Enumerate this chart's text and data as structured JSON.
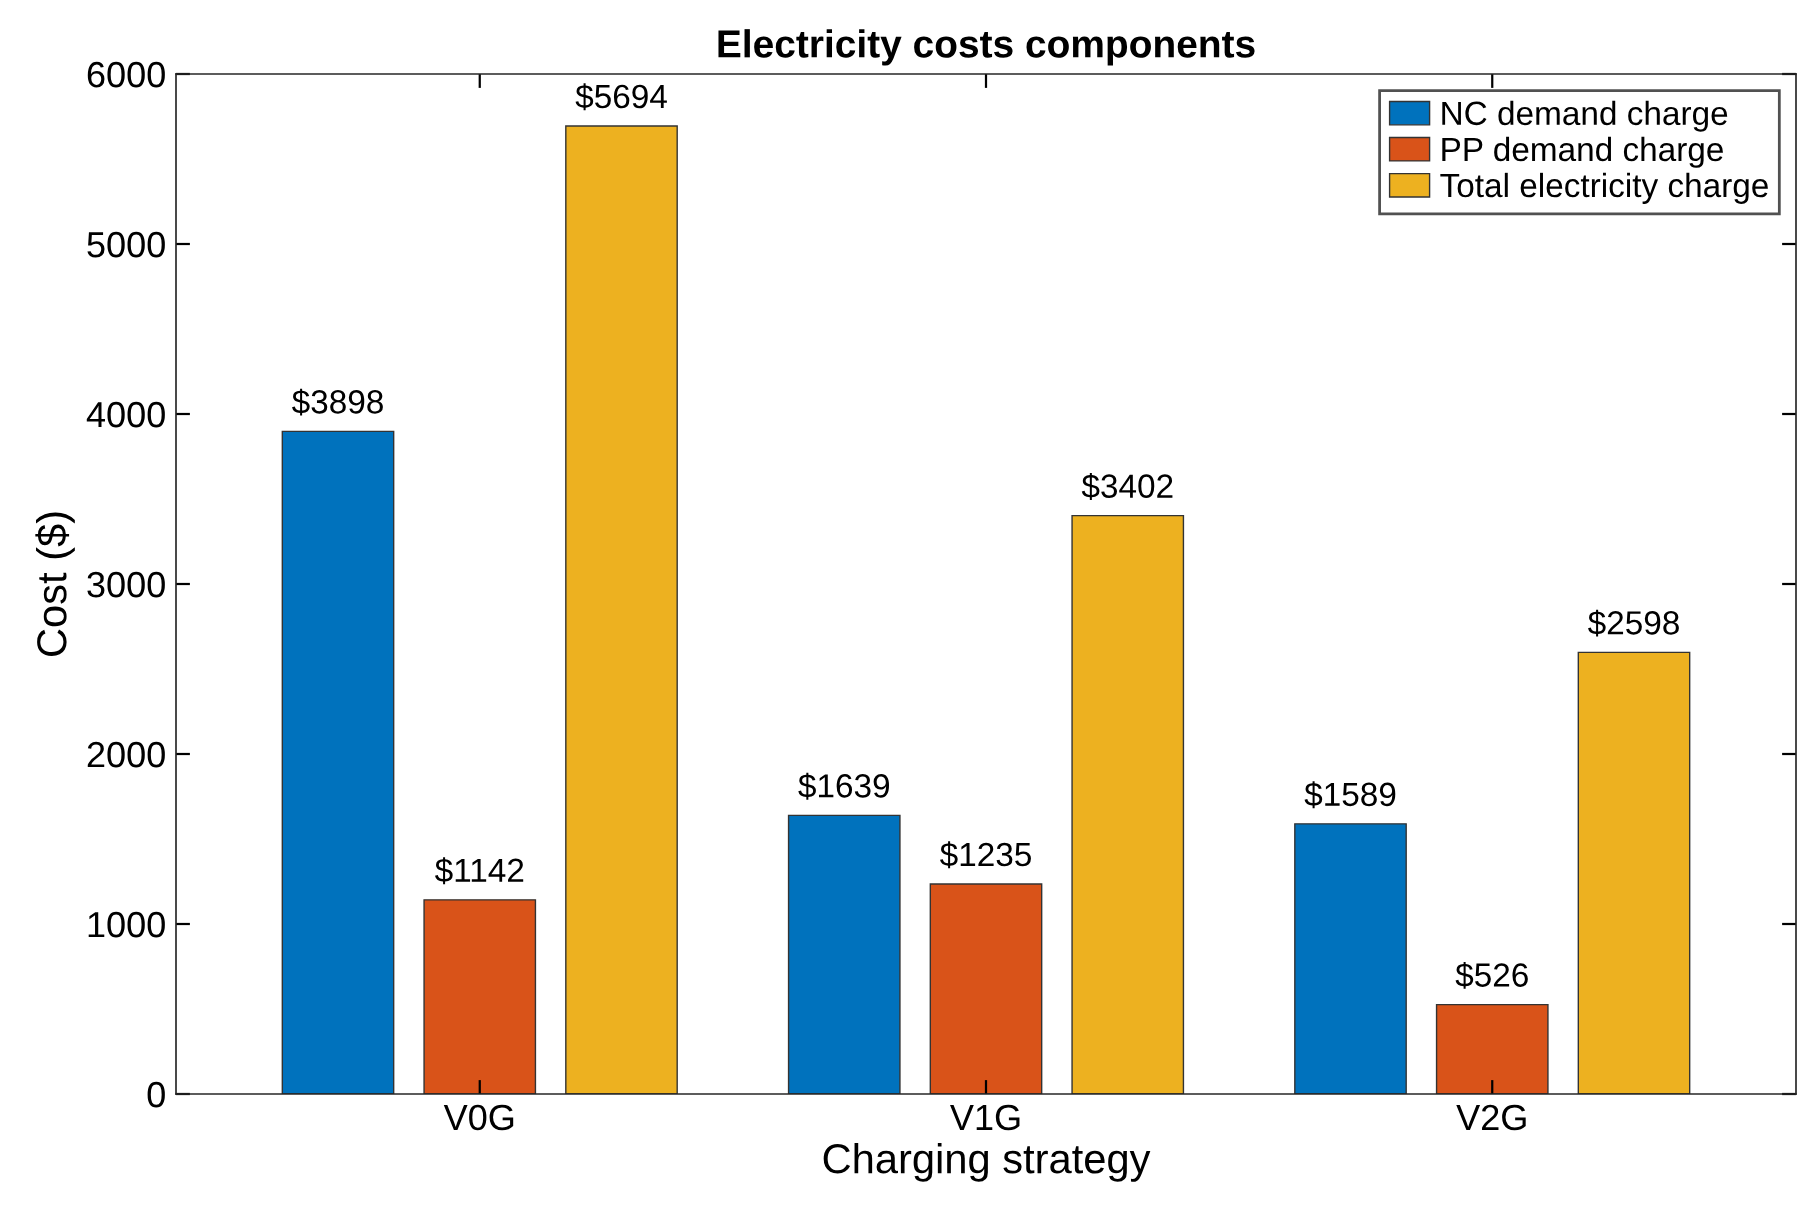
{
  "chart_data": {
    "type": "bar",
    "title": "Electricity costs components",
    "xlabel": "Charging strategy",
    "ylabel": "Cost ($)",
    "categories": [
      "V0G",
      "V1G",
      "V2G"
    ],
    "series": [
      {
        "name": "NC demand charge",
        "color": "#0072bd",
        "values": [
          3898,
          1639,
          1589
        ],
        "value_labels": [
          "$3898",
          "$1639",
          "$1589"
        ]
      },
      {
        "name": "PP demand charge",
        "color": "#d95319",
        "values": [
          1142,
          1235,
          526
        ],
        "value_labels": [
          "$1142",
          "$1235",
          "$526"
        ]
      },
      {
        "name": "Total electricity charge",
        "color": "#edb120",
        "values": [
          5694,
          3402,
          2598
        ],
        "value_labels": [
          "$5694",
          "$3402",
          "$2598"
        ]
      }
    ],
    "ylim": [
      0,
      6000
    ],
    "yticks": [
      0,
      1000,
      2000,
      3000,
      4000,
      5000,
      6000
    ],
    "grid": false,
    "legend": "top right"
  }
}
